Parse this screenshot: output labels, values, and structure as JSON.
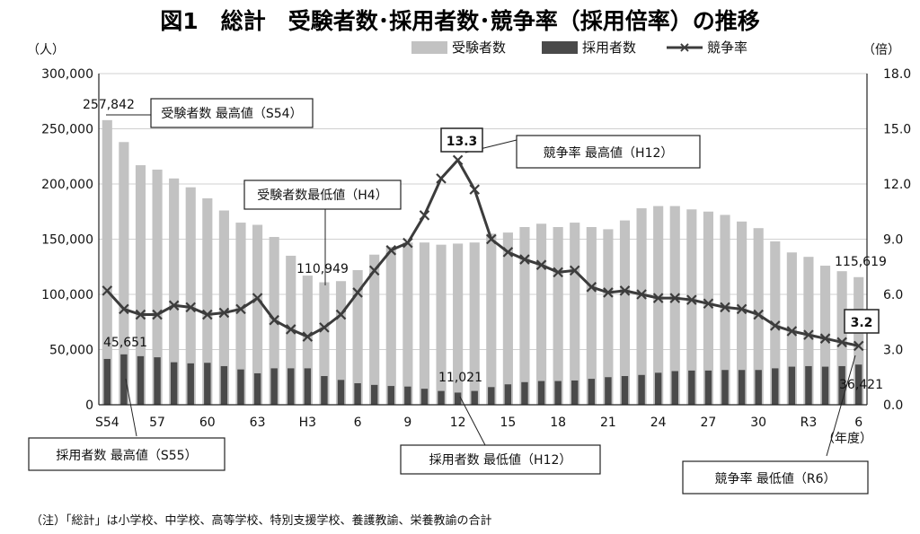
{
  "title": "図1　総計　受験者数･採用者数･競争率（採用倍率）の推移",
  "units": {
    "left": "（人）",
    "right": "（倍）",
    "x": "（年度）"
  },
  "legend": {
    "applicants": "受験者数",
    "hires": "採用者数",
    "ratio": "競争率"
  },
  "colors": {
    "applicants": "#c2c2c2",
    "hires": "#4a4a4a",
    "ratio": "#3c3c3c"
  },
  "callouts": {
    "applicants_max": "受験者数 最高値（S54）",
    "applicants_min": "受験者数最低値（H4）",
    "ratio_max": "競争率 最高値（H12）",
    "hires_max": "採用者数 最高値（S55）",
    "hires_min": "採用者数 最低値（H12）",
    "ratio_min": "競争率 最低値（R6）"
  },
  "data_labels": {
    "applicants_max": "257,842",
    "applicants_min": "110,949",
    "applicants_last": "115,619",
    "hires_max": "45,651",
    "hires_min": "11,021",
    "hires_last": "36,421",
    "ratio_max": "13.3",
    "ratio_min": "3.2"
  },
  "note": "（注）「総計」は小学校、中学校、高等学校、特別支援学校、養護教諭、栄養教諭の合計",
  "chart_data": {
    "type": "bar",
    "categories": [
      "S54",
      "S55",
      "S56",
      "S57",
      "S58",
      "S59",
      "S60",
      "S61",
      "S62",
      "S63",
      "H1",
      "H2",
      "H3",
      "H4",
      "H5",
      "H6",
      "H7",
      "H8",
      "H9",
      "H10",
      "H11",
      "H12",
      "H13",
      "H14",
      "H15",
      "H16",
      "H17",
      "H18",
      "H19",
      "H20",
      "H21",
      "H22",
      "H23",
      "H24",
      "H25",
      "H26",
      "H27",
      "H28",
      "H29",
      "H30",
      "R1",
      "R2",
      "R3",
      "R4",
      "R5",
      "R6"
    ],
    "x_tick_labels": [
      {
        "index": 0,
        "label": "S54"
      },
      {
        "index": 3,
        "label": "57"
      },
      {
        "index": 6,
        "label": "60"
      },
      {
        "index": 9,
        "label": "63"
      },
      {
        "index": 12,
        "label": "H3"
      },
      {
        "index": 15,
        "label": "6"
      },
      {
        "index": 18,
        "label": "9"
      },
      {
        "index": 21,
        "label": "12"
      },
      {
        "index": 24,
        "label": "15"
      },
      {
        "index": 27,
        "label": "18"
      },
      {
        "index": 30,
        "label": "21"
      },
      {
        "index": 33,
        "label": "24"
      },
      {
        "index": 36,
        "label": "27"
      },
      {
        "index": 39,
        "label": "30"
      },
      {
        "index": 42,
        "label": "R3"
      },
      {
        "index": 45,
        "label": "6"
      }
    ],
    "y_left": {
      "min": 0,
      "max": 300000,
      "ticks": [
        "0",
        "50,000",
        "100,000",
        "150,000",
        "200,000",
        "250,000",
        "300,000"
      ]
    },
    "y_right": {
      "min": 0,
      "max": 18,
      "ticks": [
        "0.0",
        "3.0",
        "6.0",
        "9.0",
        "12.0",
        "15.0",
        "18.0"
      ]
    },
    "series": [
      {
        "name": "受験者数",
        "kind": "bar",
        "axis": "left",
        "values": [
          257842,
          238000,
          217000,
          213000,
          205000,
          197000,
          187000,
          176000,
          165000,
          163000,
          152000,
          135000,
          117000,
          110949,
          112000,
          122000,
          136000,
          143000,
          147000,
          147000,
          145000,
          146000,
          147000,
          155000,
          156000,
          161000,
          164000,
          161000,
          165000,
          161000,
          159000,
          167000,
          178000,
          180000,
          180000,
          177000,
          175000,
          172000,
          166000,
          160000,
          148000,
          138000,
          134000,
          126000,
          121000,
          115619
        ]
      },
      {
        "name": "採用者数",
        "kind": "bar",
        "axis": "left",
        "values": [
          41500,
          45651,
          44000,
          43000,
          38500,
          37500,
          38000,
          35000,
          32000,
          28500,
          33000,
          33000,
          33000,
          26000,
          22500,
          19500,
          18000,
          17000,
          16500,
          14500,
          12500,
          11021,
          12500,
          16000,
          18500,
          20500,
          21500,
          21500,
          22000,
          23500,
          25000,
          26000,
          27000,
          29000,
          30500,
          31000,
          31000,
          31500,
          31500,
          31500,
          33000,
          34500,
          35000,
          34500,
          35000,
          36421
        ]
      },
      {
        "name": "競争率",
        "kind": "line",
        "axis": "right",
        "values": [
          6.2,
          5.2,
          4.9,
          4.9,
          5.4,
          5.3,
          4.9,
          5.0,
          5.2,
          5.8,
          4.6,
          4.1,
          3.7,
          4.2,
          4.9,
          6.1,
          7.3,
          8.4,
          8.8,
          10.3,
          12.3,
          13.3,
          11.7,
          9.0,
          8.3,
          7.9,
          7.6,
          7.2,
          7.3,
          6.4,
          6.1,
          6.2,
          6.0,
          5.8,
          5.8,
          5.7,
          5.5,
          5.3,
          5.2,
          4.9,
          4.3,
          4.0,
          3.8,
          3.6,
          3.4,
          3.2
        ]
      }
    ],
    "legend_position": "top-center"
  }
}
